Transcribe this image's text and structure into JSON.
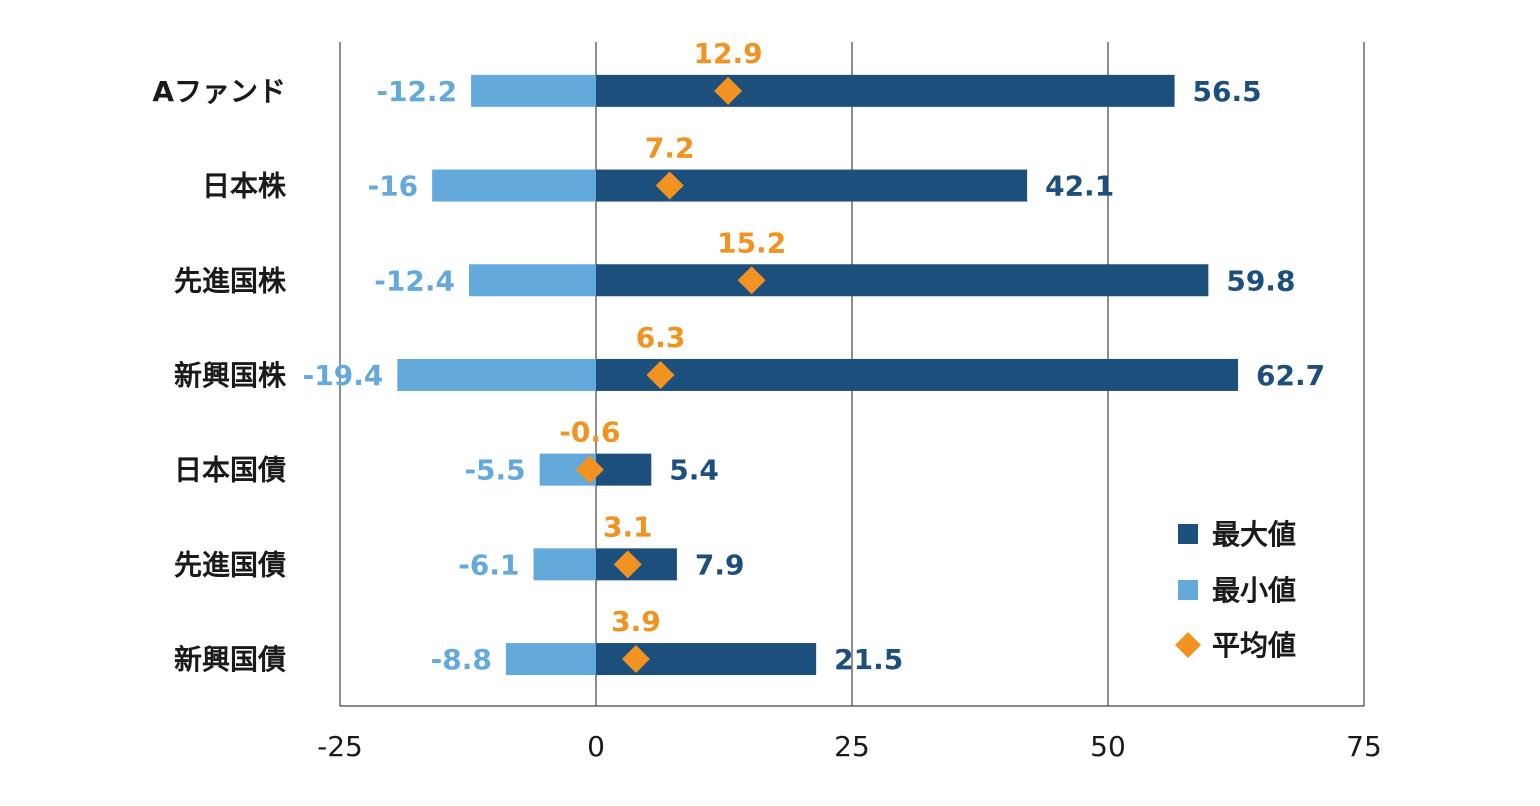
{
  "chart_data": {
    "type": "bar",
    "categories": [
      "Aファンド",
      "日本株",
      "先進国株",
      "新興国株",
      "日本国債",
      "先進国債",
      "新興国債"
    ],
    "series": [
      {
        "name": "最大値",
        "values": [
          56.5,
          42.1,
          59.8,
          62.7,
          5.4,
          7.9,
          21.5
        ],
        "color": "#1c4f7c"
      },
      {
        "name": "最小値",
        "values": [
          -12.2,
          -16,
          -12.4,
          -19.4,
          -5.5,
          -6.1,
          -8.8
        ],
        "color": "#64a9dc"
      },
      {
        "name": "平均値",
        "values": [
          12.9,
          7.2,
          15.2,
          6.3,
          -0.6,
          3.1,
          3.9
        ],
        "color": "#f29321",
        "marker": "diamond"
      }
    ],
    "value_labels": {
      "max": [
        "56.5",
        "42.1",
        "59.8",
        "62.7",
        "5.4",
        "7.9",
        "21.5"
      ],
      "min": [
        "-12.2",
        "-16",
        "-12.4",
        "-19.4",
        "-5.5",
        "-6.1",
        "-8.8"
      ],
      "avg": [
        "12.9",
        "7.2",
        "15.2",
        "6.3",
        "-0.6",
        "3.1",
        "3.9"
      ]
    },
    "x_ticks": [
      -25,
      0,
      25,
      50,
      75
    ],
    "x_tick_labels": [
      "-25",
      "0",
      "25",
      "50",
      "75"
    ],
    "xlim": [
      -25,
      75
    ],
    "orientation": "horizontal",
    "grid": "vertical",
    "legend_placement": "bottom-right",
    "title": "",
    "xlabel": "",
    "ylabel": ""
  }
}
